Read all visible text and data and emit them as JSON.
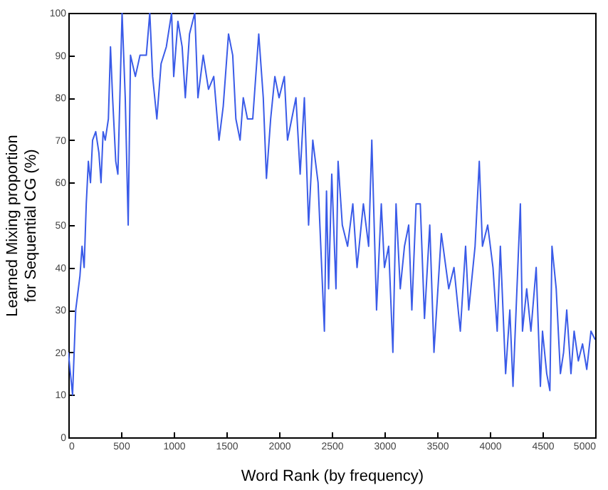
{
  "chart_data": {
    "type": "line",
    "xlabel": "Word Rank (by frequency)",
    "ylabel": "Learned Mixing proportion for Sequential CG (%)",
    "x": [
      0,
      40,
      70,
      110,
      130,
      150,
      170,
      190,
      210,
      230,
      260,
      290,
      310,
      330,
      350,
      380,
      400,
      420,
      450,
      470,
      510,
      540,
      568,
      590,
      636,
      680,
      740,
      773,
      800,
      840,
      880,
      930,
      980,
      1000,
      1040,
      1080,
      1110,
      1150,
      1200,
      1230,
      1280,
      1330,
      1380,
      1430,
      1470,
      1520,
      1560,
      1590,
      1630,
      1660,
      1700,
      1750,
      1807,
      1850,
      1880,
      1920,
      1960,
      2000,
      2050,
      2080,
      2120,
      2160,
      2200,
      2240,
      2280,
      2320,
      2370,
      2430,
      2450,
      2470,
      2500,
      2540,
      2560,
      2600,
      2650,
      2700,
      2740,
      2800,
      2850,
      2880,
      2925,
      2970,
      3000,
      3040,
      3080,
      3110,
      3150,
      3190,
      3230,
      3260,
      3300,
      3340,
      3380,
      3430,
      3470,
      3540,
      3610,
      3660,
      3720,
      3770,
      3800,
      3860,
      3900,
      3930,
      3980,
      4030,
      4070,
      4100,
      4150,
      4190,
      4220,
      4290,
      4310,
      4350,
      4390,
      4440,
      4480,
      4500,
      4540,
      4570,
      4590,
      4630,
      4670,
      4700,
      4730,
      4770,
      4800,
      4840,
      4880,
      4920,
      4960,
      5000
    ],
    "series": [
      {
        "color": "#3a5be8",
        "values": [
          20,
          10,
          30,
          38,
          45,
          40,
          55,
          65,
          60,
          70,
          72,
          67,
          60,
          72,
          70,
          75,
          92,
          80,
          65,
          62,
          100,
          80,
          50,
          90,
          85,
          90,
          90,
          100,
          85,
          75,
          88,
          92,
          100,
          85,
          98,
          92,
          80,
          95,
          100,
          80,
          90,
          82,
          85,
          70,
          78,
          95,
          90,
          75,
          70,
          80,
          75,
          75,
          95,
          80,
          61,
          75,
          85,
          80,
          85,
          70,
          75,
          80,
          62,
          80,
          50,
          70,
          60,
          25,
          58,
          35,
          62,
          35,
          65,
          50,
          45,
          55,
          40,
          55,
          45,
          70,
          30,
          55,
          40,
          45,
          20,
          55,
          35,
          45,
          50,
          30,
          55,
          55,
          28,
          50,
          20,
          48,
          35,
          40,
          25,
          45,
          30,
          45,
          65,
          45,
          50,
          40,
          25,
          45,
          15,
          30,
          12,
          55,
          25,
          35,
          25,
          40,
          12,
          25,
          15,
          11,
          45,
          35,
          15,
          20,
          30,
          15,
          25,
          18,
          22,
          16,
          25,
          23
        ]
      }
    ],
    "xlim": [
      0,
      5000
    ],
    "xticks": [
      0,
      500,
      {
        "value": 1000,
        "label": "1000"
      },
      {
        "value": 1500,
        "label": "1500"
      },
      {
        "value": 2000,
        "label": "2000"
      },
      {
        "value": 2500,
        "label": "2500"
      },
      {
        "value": 3000,
        "label": "3000"
      },
      {
        "value": 3500,
        "label": "3500"
      },
      {
        "value": 4000,
        "label": "4000"
      },
      {
        "value": 4500,
        "label": "4500"
      },
      {
        "value": 5000,
        "label": "5000"
      }
    ],
    "ylim": [
      0,
      100
    ],
    "yticks": [
      0,
      10,
      20,
      30,
      40,
      50,
      60,
      70,
      80,
      90,
      100
    ],
    "grid": false,
    "marker": "none",
    "line_style": "solid"
  }
}
